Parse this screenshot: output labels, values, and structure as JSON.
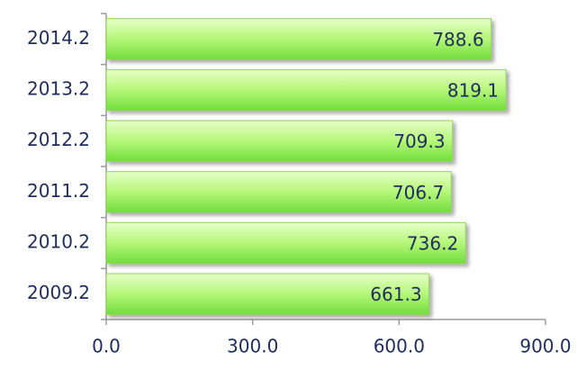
{
  "chart_data": {
    "type": "bar",
    "orientation": "horizontal",
    "categories": [
      "2014.2",
      "2013.2",
      "2012.2",
      "2011.2",
      "2010.2",
      "2009.2"
    ],
    "values": [
      788.6,
      819.1,
      709.3,
      706.7,
      736.2,
      661.3
    ],
    "color": "#99ee55",
    "xlim": [
      0,
      900
    ],
    "xticks": [
      {
        "value": 0,
        "label": "0.0"
      },
      {
        "value": 300,
        "label": "300.0"
      },
      {
        "value": 600,
        "label": "600.0"
      },
      {
        "value": 900,
        "label": "900.0"
      }
    ],
    "grid": false
  }
}
